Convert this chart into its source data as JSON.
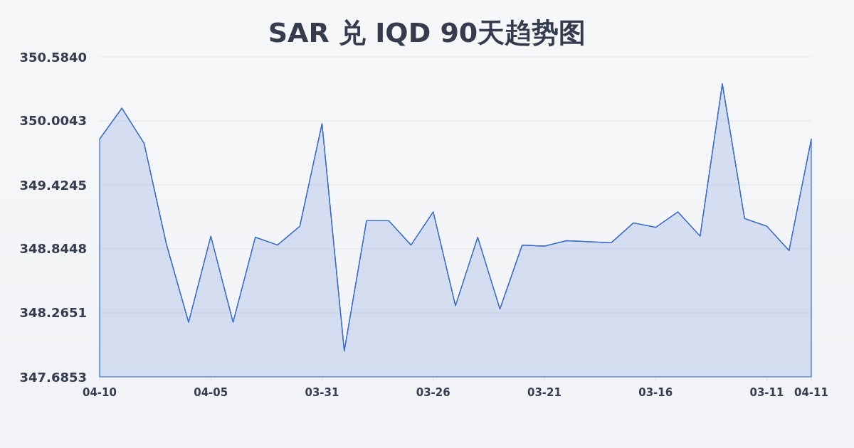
{
  "chart_data": {
    "type": "area",
    "title": "SAR 兑 IQD 90天趋势图",
    "categories": [
      "04-10",
      null,
      null,
      null,
      null,
      "04-05",
      null,
      null,
      null,
      null,
      "03-31",
      null,
      null,
      null,
      null,
      "03-26",
      null,
      null,
      null,
      null,
      "03-21",
      null,
      null,
      null,
      null,
      "03-16",
      null,
      null,
      null,
      null,
      "03-11",
      null,
      "04-11"
    ],
    "values": [
      349.84,
      350.12,
      349.8,
      348.89,
      348.18,
      348.96,
      348.18,
      348.95,
      348.88,
      349.05,
      349.98,
      347.92,
      349.1,
      349.1,
      348.88,
      349.18,
      348.33,
      348.95,
      348.3,
      348.88,
      348.87,
      348.92,
      348.91,
      348.9,
      349.08,
      349.04,
      349.18,
      348.96,
      350.34,
      349.12,
      349.05,
      348.83,
      349.84
    ],
    "color": "#3a6bd1",
    "ylim": [
      347.6853,
      350.584
    ],
    "yticks": [
      347.6853,
      348.2651,
      348.8448,
      349.4245,
      350.0043,
      {
        "value": 350.584,
        "label": "350.5840"
      }
    ],
    "grid": "y"
  }
}
